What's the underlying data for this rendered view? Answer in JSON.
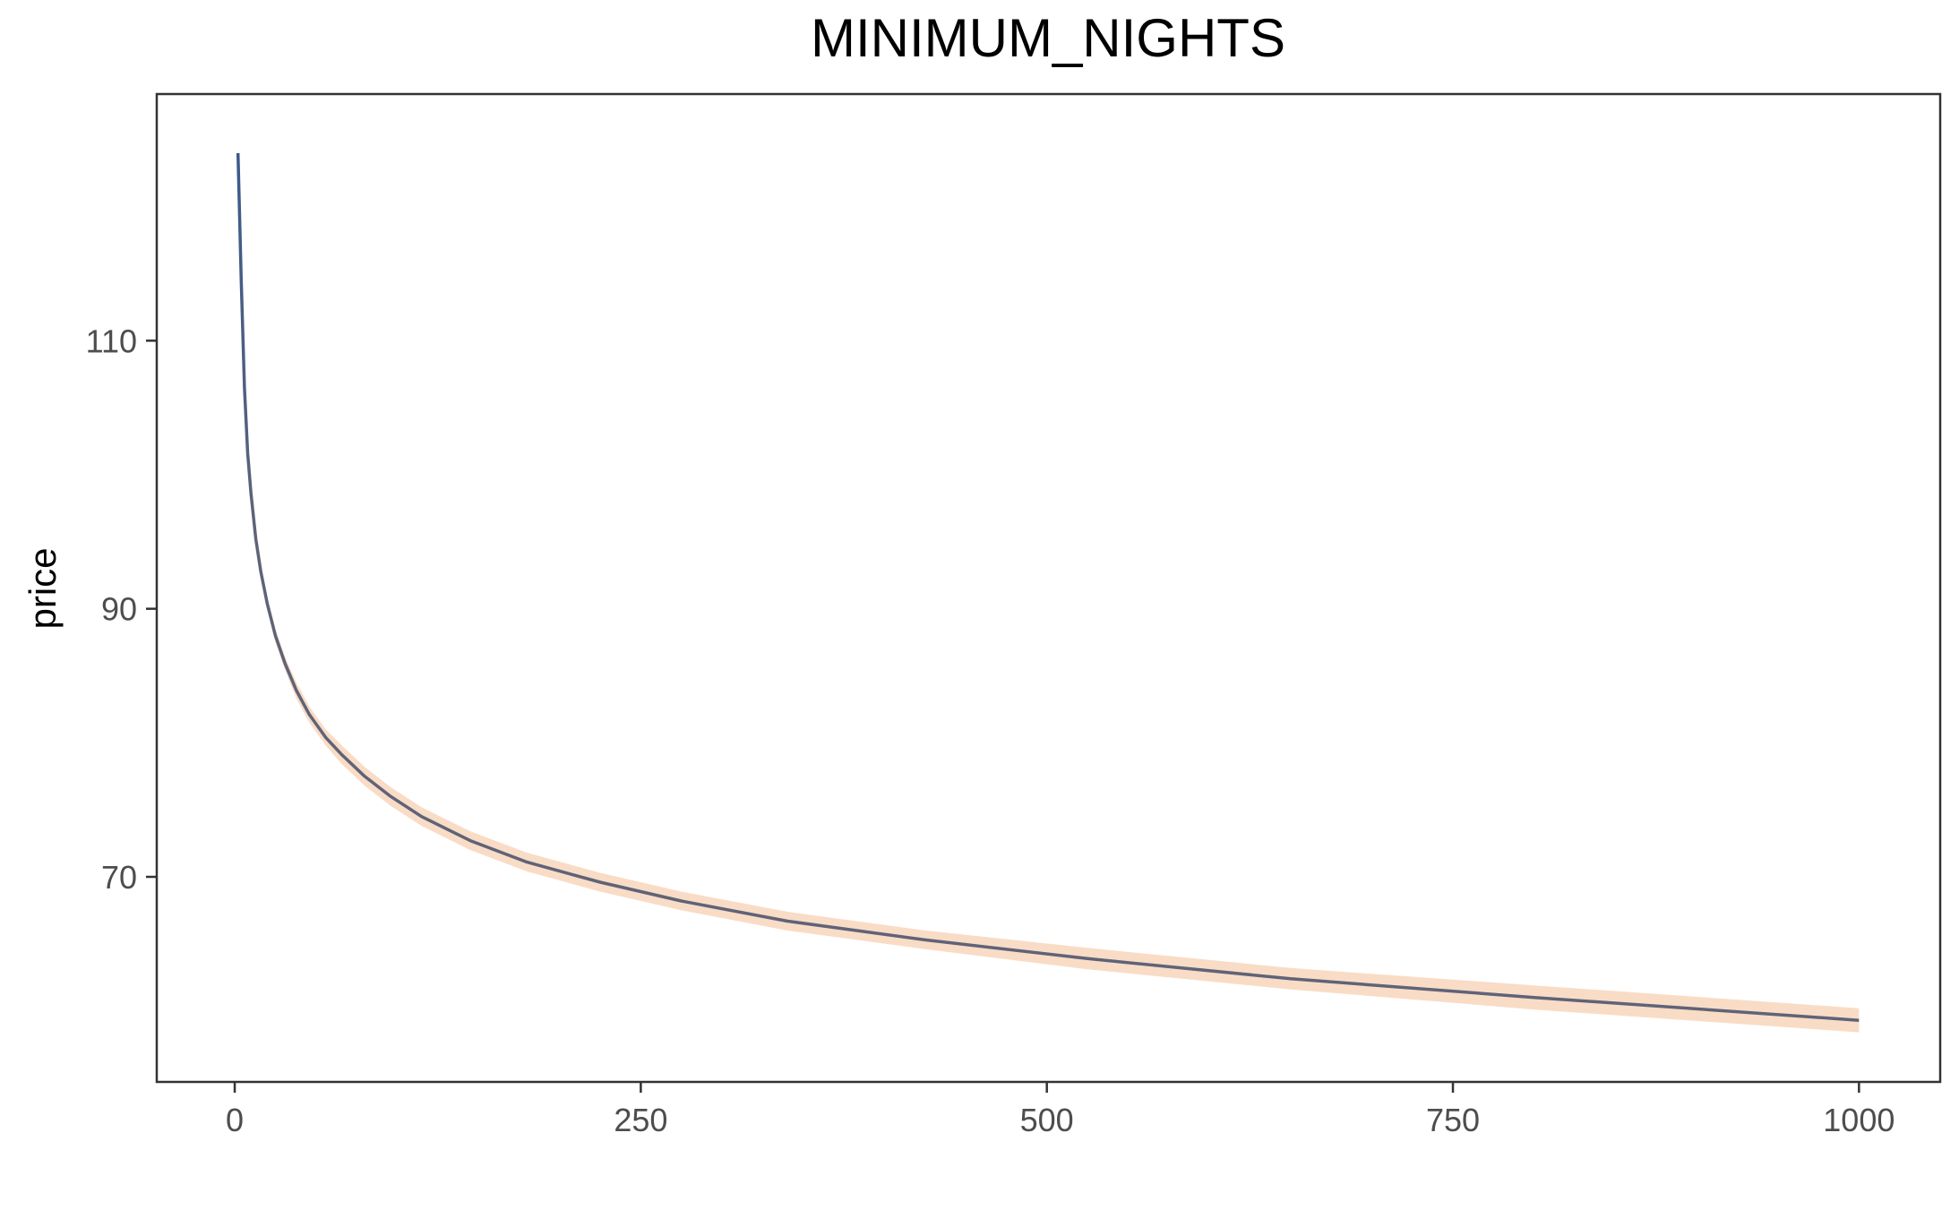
{
  "chart_data": {
    "type": "line",
    "title": "MINIMUM_NIGHTS",
    "xlabel": "",
    "ylabel": "price",
    "xlim": [
      -48,
      1050
    ],
    "ylim": [
      54.7,
      128.4
    ],
    "x_ticks": [
      0,
      250,
      500,
      750,
      1000
    ],
    "y_ticks": [
      70,
      90,
      110
    ],
    "grid": false,
    "legend": "none",
    "colors": {
      "line_start": "#3a5a8a",
      "line_end": "#5f6378",
      "band": "#f9dcc6",
      "axis": "#333333",
      "tick_text": "#4d4d4d"
    },
    "series": [
      {
        "x": [
          2,
          4,
          6,
          8,
          10,
          13,
          16,
          20,
          25,
          31,
          38,
          46,
          56,
          66,
          80,
          96,
          115,
          145,
          180,
          225,
          275,
          340,
          425,
          525,
          650,
          800,
          1000
        ],
        "y": [
          124.0,
          114.5,
          106.5,
          101.6,
          98.6,
          95.2,
          92.8,
          90.4,
          88.0,
          85.9,
          83.9,
          82.1,
          80.4,
          79.1,
          77.5,
          76.0,
          74.5,
          72.7,
          71.1,
          69.6,
          68.2,
          66.7,
          65.3,
          63.9,
          62.4,
          61.0,
          59.3
        ],
        "lower": [
          124.0,
          114.3,
          106.3,
          101.3,
          98.3,
          94.9,
          92.4,
          90.0,
          87.5,
          85.4,
          83.3,
          81.5,
          79.8,
          78.4,
          76.8,
          75.3,
          73.8,
          72.0,
          70.4,
          68.9,
          67.5,
          66.0,
          64.6,
          63.1,
          61.6,
          60.1,
          58.4
        ],
        "upper": [
          124.0,
          114.7,
          106.7,
          101.9,
          98.9,
          95.5,
          93.2,
          90.8,
          88.5,
          86.4,
          84.5,
          82.7,
          81.0,
          79.8,
          78.2,
          76.7,
          75.2,
          73.4,
          71.8,
          70.3,
          68.9,
          67.4,
          66.0,
          64.7,
          63.2,
          61.9,
          60.2
        ]
      }
    ]
  }
}
